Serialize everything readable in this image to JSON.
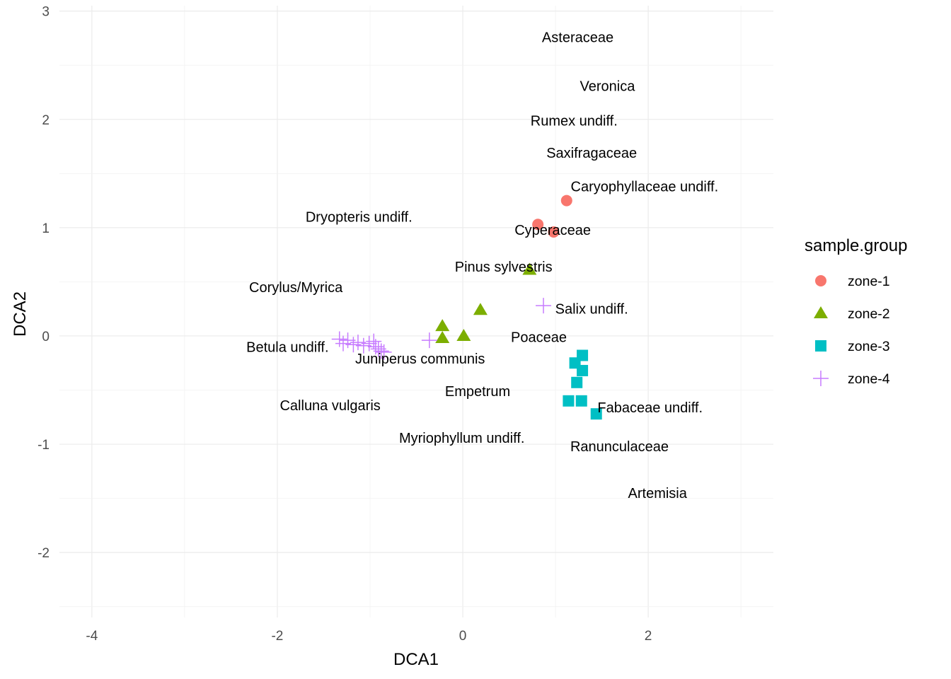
{
  "colors": {
    "zone-1": "#f8766d",
    "zone-2": "#7cae00",
    "zone-3": "#00bfc4",
    "zone-4": "#c77cff"
  },
  "chart_data": {
    "type": "scatter",
    "xlabel": "DCA1",
    "ylabel": "DCA2",
    "xlim": [
      -4.35,
      3.35
    ],
    "ylim": [
      -2.6,
      3.05
    ],
    "x_ticks": [
      -4,
      -2,
      0,
      2
    ],
    "y_ticks": [
      -2,
      -1,
      0,
      1,
      2,
      3
    ],
    "grid": true,
    "legend": {
      "title": "sample.group",
      "position": "right",
      "entries": [
        {
          "label": "zone-1",
          "shape": "circle"
        },
        {
          "label": "zone-2",
          "shape": "triangle"
        },
        {
          "label": "zone-3",
          "shape": "square"
        },
        {
          "label": "zone-4",
          "shape": "plus"
        }
      ]
    },
    "series": [
      {
        "name": "zone-1",
        "shape": "circle",
        "points": [
          [
            1.12,
            1.25
          ],
          [
            0.81,
            1.03
          ],
          [
            0.98,
            0.96
          ]
        ]
      },
      {
        "name": "zone-2",
        "shape": "triangle",
        "points": [
          [
            0.72,
            0.61
          ],
          [
            0.19,
            0.24
          ],
          [
            -0.22,
            0.09
          ],
          [
            -0.22,
            -0.02
          ],
          [
            0.01,
            0.0
          ]
        ]
      },
      {
        "name": "zone-3",
        "shape": "square",
        "points": [
          [
            1.29,
            -0.18
          ],
          [
            1.21,
            -0.25
          ],
          [
            1.29,
            -0.32
          ],
          [
            1.23,
            -0.43
          ],
          [
            1.14,
            -0.6
          ],
          [
            1.28,
            -0.6
          ],
          [
            1.44,
            -0.72
          ]
        ]
      },
      {
        "name": "zone-4",
        "shape": "plus",
        "points": [
          [
            0.87,
            0.28
          ],
          [
            -0.36,
            -0.04
          ],
          [
            -1.33,
            -0.03
          ],
          [
            -1.29,
            -0.07
          ],
          [
            -1.24,
            -0.04
          ],
          [
            -1.18,
            -0.08
          ],
          [
            -1.13,
            -0.06
          ],
          [
            -1.07,
            -0.09
          ],
          [
            -1.01,
            -0.07
          ],
          [
            -0.96,
            -0.05
          ],
          [
            -0.94,
            -0.1
          ],
          [
            -0.91,
            -0.12
          ],
          [
            -0.88,
            -0.14
          ],
          [
            -0.85,
            -0.15
          ]
        ]
      }
    ],
    "species_labels": [
      {
        "text": "Asteraceae",
        "x": 1.24,
        "y": 2.76
      },
      {
        "text": "Veronica",
        "x": 1.56,
        "y": 2.31
      },
      {
        "text": "Rumex undiff.",
        "x": 1.2,
        "y": 1.99
      },
      {
        "text": "Saxifragaceae",
        "x": 1.39,
        "y": 1.69
      },
      {
        "text": "Caryophyllaceae undiff.",
        "x": 1.96,
        "y": 1.38
      },
      {
        "text": "Dryopteris undiff.",
        "x": -1.12,
        "y": 1.1
      },
      {
        "text": "Cyperaceae",
        "x": 0.97,
        "y": 0.98
      },
      {
        "text": "Pinus sylvestris",
        "x": 0.44,
        "y": 0.64
      },
      {
        "text": "Corylus/Myrica",
        "x": -1.8,
        "y": 0.45
      },
      {
        "text": "Salix undiff.",
        "x": 1.39,
        "y": 0.25
      },
      {
        "text": "Poaceae",
        "x": 0.82,
        "y": -0.01
      },
      {
        "text": "Betula undiff.",
        "x": -1.89,
        "y": -0.1
      },
      {
        "text": "Juniperus communis",
        "x": -0.46,
        "y": -0.21
      },
      {
        "text": "Empetrum",
        "x": 0.16,
        "y": -0.51
      },
      {
        "text": "Calluna vulgaris",
        "x": -1.43,
        "y": -0.64
      },
      {
        "text": "Fabaceae undiff.",
        "x": 2.02,
        "y": -0.66
      },
      {
        "text": "Myriophyllum undiff.",
        "x": -0.01,
        "y": -0.94
      },
      {
        "text": "Ranunculaceae",
        "x": 1.69,
        "y": -1.02
      },
      {
        "text": "Artemisia",
        "x": 2.1,
        "y": -1.45
      }
    ]
  }
}
